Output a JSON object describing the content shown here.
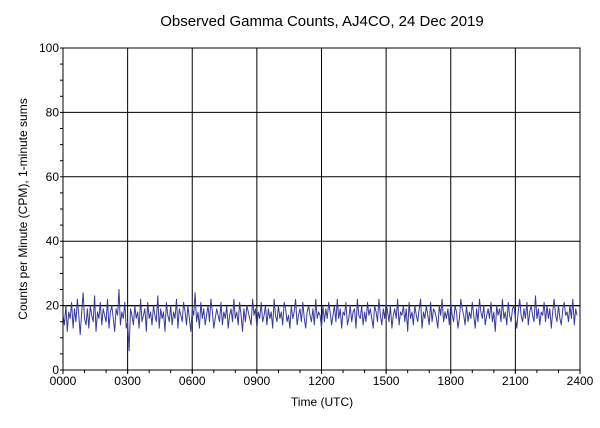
{
  "chart_data": {
    "type": "line",
    "title": "Observed Gamma Counts, AJ4CO, 24 Dec 2019",
    "xlabel": "Time (UTC)",
    "ylabel": "Counts per Minute (CPM), 1-minute sums",
    "xlim": [
      0,
      1440
    ],
    "ylim": [
      0,
      100
    ],
    "x_ticks": [
      {
        "minute": 0,
        "label": "0000"
      },
      {
        "minute": 180,
        "label": "0300"
      },
      {
        "minute": 360,
        "label": "0600"
      },
      {
        "minute": 540,
        "label": "0900"
      },
      {
        "minute": 720,
        "label": "1200"
      },
      {
        "minute": 900,
        "label": "1500"
      },
      {
        "minute": 1080,
        "label": "1800"
      },
      {
        "minute": 1260,
        "label": "2100"
      },
      {
        "minute": 1440,
        "label": "2400"
      }
    ],
    "y_ticks": [
      0,
      20,
      40,
      60,
      80,
      100
    ],
    "grid": true,
    "reference_line": 20,
    "series": [
      {
        "color": "#3a3a9a",
        "x_start_minute": 0,
        "x_step_minutes": 4,
        "values": [
          17,
          14,
          20,
          12,
          18,
          16,
          21,
          13,
          19,
          15,
          22,
          17,
          11,
          18,
          24,
          16,
          14,
          19,
          13,
          20,
          17,
          15,
          23,
          12,
          18,
          16,
          21,
          14,
          19,
          17,
          15,
          22,
          13,
          18,
          20,
          16,
          12,
          19,
          17,
          25,
          14,
          18,
          16,
          21,
          13,
          15,
          6,
          19,
          17,
          14,
          20,
          16,
          18,
          13,
          22,
          15,
          17,
          19,
          12,
          21,
          16,
          18,
          14,
          20,
          17,
          15,
          23,
          13,
          19,
          16,
          18,
          12,
          21,
          17,
          15,
          20,
          14,
          18,
          16,
          22,
          13,
          19,
          17,
          15,
          21,
          18,
          14,
          20,
          16,
          12,
          19,
          17,
          24,
          15,
          18,
          13,
          21,
          16,
          19,
          14,
          17,
          20,
          15,
          22,
          18,
          13,
          16,
          19,
          17,
          15,
          21,
          14,
          18,
          16,
          20,
          13,
          17,
          19,
          15,
          22,
          16,
          18,
          14,
          21,
          17,
          12,
          19,
          15,
          20,
          18,
          16,
          14,
          22,
          17,
          19,
          13,
          18,
          16,
          21,
          15,
          17,
          20,
          14,
          19,
          16,
          18,
          13,
          22,
          17,
          15,
          20,
          16,
          18,
          14,
          21,
          19,
          15,
          17,
          13,
          20,
          16,
          18,
          22,
          14,
          17,
          19,
          15,
          21,
          16,
          13,
          18,
          20,
          17,
          15,
          19,
          14,
          22,
          16,
          18,
          17,
          13,
          20,
          15,
          19,
          16,
          21,
          18,
          14,
          17,
          20,
          15,
          22,
          16,
          19,
          13,
          18,
          17,
          21,
          14,
          16,
          20,
          15,
          18,
          19,
          13,
          22,
          17,
          16,
          20,
          14,
          18,
          15,
          21,
          17,
          19,
          16,
          13,
          20,
          18,
          15,
          22,
          17,
          14,
          19,
          16,
          21,
          18,
          15,
          20,
          13,
          17,
          19,
          16,
          22,
          14,
          18,
          17,
          20,
          15,
          19,
          12,
          21,
          16,
          18,
          14,
          20,
          17,
          15,
          19,
          22,
          13,
          18,
          16,
          20,
          17,
          14,
          21,
          15,
          19,
          18,
          16,
          13,
          20,
          17,
          22,
          15,
          18,
          16,
          19,
          14,
          21,
          17,
          15,
          20,
          18,
          13,
          16,
          22,
          19,
          17,
          14,
          20,
          15,
          18,
          16,
          21,
          17,
          13,
          19,
          15,
          22,
          18,
          16,
          20,
          14,
          17,
          19,
          16,
          21,
          15,
          18,
          12,
          20,
          17,
          19,
          15,
          22,
          16,
          18,
          14,
          21,
          17,
          15,
          19,
          20,
          16,
          13,
          18,
          22,
          17,
          15,
          19,
          16,
          21,
          14,
          18,
          20,
          17,
          15,
          23,
          16,
          19,
          14,
          18,
          17,
          21,
          15,
          20,
          16,
          19,
          13,
          18,
          22,
          17,
          15,
          20,
          16,
          14,
          19,
          21,
          17,
          18,
          15,
          20,
          16,
          22,
          14,
          19,
          17
        ]
      }
    ]
  }
}
